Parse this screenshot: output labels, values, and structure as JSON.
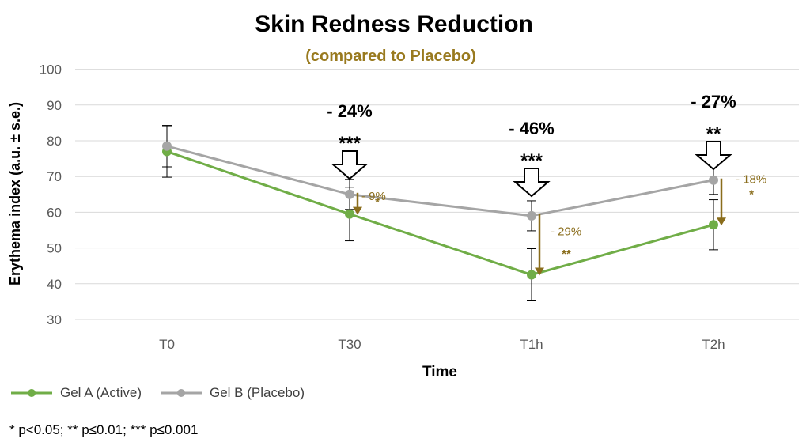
{
  "chart_data": {
    "type": "line",
    "title": "Skin Redness Reduction",
    "subtitle": "(compared to Placebo)",
    "xlabel": "Time",
    "ylabel": "Erythema index (a.u. ± s.e.)",
    "categories": [
      "T0",
      "T30",
      "T1h",
      "T2h"
    ],
    "ylim": [
      30,
      100
    ],
    "yticks": [
      30,
      40,
      50,
      60,
      70,
      80,
      90,
      100
    ],
    "grid": "horizontal",
    "legend": "bottom-left",
    "series": [
      {
        "name": "Gel A (Active)",
        "color": "#70ad47",
        "values": [
          77,
          59.5,
          42.5,
          56.5
        ],
        "error": [
          7.2,
          7.5,
          7.3,
          7
        ]
      },
      {
        "name": "Gel B (Placebo)",
        "color": "#a5a5a5",
        "values": [
          78.5,
          65,
          59,
          69
        ],
        "error": [
          5.8,
          4.2,
          4.2,
          4
        ]
      }
    ],
    "annotations_vs_baseline": [
      {
        "category": "T30",
        "label": "- 24%",
        "stars": "***"
      },
      {
        "category": "T1h",
        "label": "- 46%",
        "stars": "***"
      },
      {
        "category": "T2h",
        "label": "- 27%",
        "stars": "**"
      }
    ],
    "annotations_vs_placebo": [
      {
        "category": "T30",
        "label": "- 9%",
        "stars": "*"
      },
      {
        "category": "T1h",
        "label": "- 29%",
        "stars": "**"
      },
      {
        "category": "T2h",
        "label": "- 18%",
        "stars": "*"
      }
    ],
    "footnote": "* p<0.05; ** p≤0.01; *** p≤0.001"
  },
  "colors": {
    "subtitle": "#997a1f",
    "placebo_annotation": "#8a6d1c",
    "gridline": "#d9d9d9",
    "axis_text": "#595959"
  }
}
